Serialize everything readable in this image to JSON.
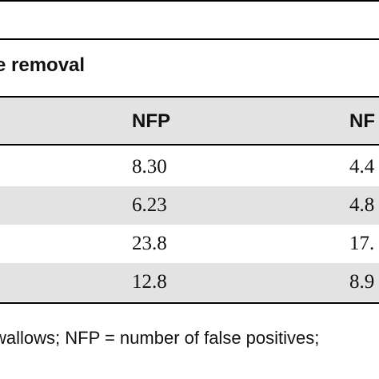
{
  "section_heading": "e removal",
  "table": {
    "columns": [
      "NFP",
      "NF"
    ],
    "rows": [
      [
        "8.30",
        "4.4"
      ],
      [
        "6.23",
        "4.8"
      ],
      [
        "23.8",
        "17."
      ],
      [
        "12.8",
        "8.9"
      ]
    ]
  },
  "footnote": "wallows; NFP = number of false positives;"
}
